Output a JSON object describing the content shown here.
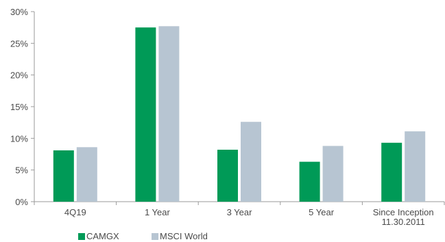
{
  "chart_data": {
    "type": "bar",
    "categories": [
      "4Q19",
      "1 Year",
      "3 Year",
      "5 Year",
      "Since Inception 11.30.2011"
    ],
    "category_lines": [
      [
        "4Q19"
      ],
      [
        "1 Year"
      ],
      [
        "3 Year"
      ],
      [
        "5 Year"
      ],
      [
        "Since Inception",
        "11.30.2011"
      ]
    ],
    "series": [
      {
        "name": "CAMGX",
        "color": "#009a57",
        "values": [
          8.1,
          27.5,
          8.2,
          6.3,
          9.3
        ]
      },
      {
        "name": "MSCI World",
        "color": "#b7c5d2",
        "values": [
          8.6,
          27.7,
          12.6,
          8.8,
          11.1
        ]
      }
    ],
    "ylim": [
      0,
      30
    ],
    "yticks": [
      0,
      5,
      10,
      15,
      20,
      25,
      30
    ],
    "ytick_labels": [
      "0%",
      "5%",
      "10%",
      "15%",
      "20%",
      "25%",
      "30%"
    ],
    "title": "",
    "xlabel": "",
    "ylabel": "",
    "grid": false,
    "legend_position": "bottom-left"
  }
}
